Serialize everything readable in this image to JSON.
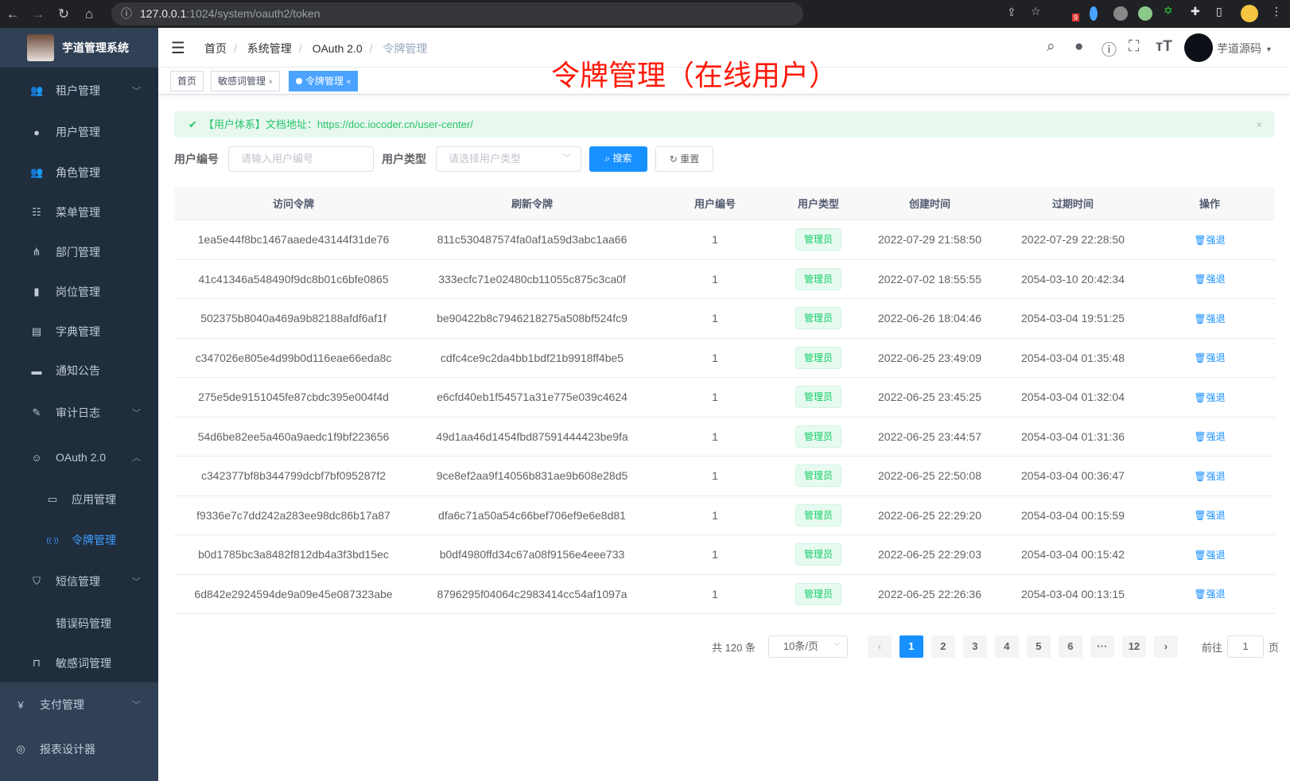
{
  "browser": {
    "url_host": "127.0.0.1",
    "url_path": ":1024/system/oauth2/token",
    "ext_badge": "9"
  },
  "sidebar": {
    "logo_text": "芋道管理系统",
    "items": [
      {
        "label": "租户管理",
        "icon": "tenant-icon",
        "chevron": "﹀"
      },
      {
        "label": "用户管理",
        "icon": "user-icon"
      },
      {
        "label": "角色管理",
        "icon": "role-icon"
      },
      {
        "label": "菜单管理",
        "icon": "menu-tree-icon"
      },
      {
        "label": "部门管理",
        "icon": "org-icon"
      },
      {
        "label": "岗位管理",
        "icon": "post-icon"
      },
      {
        "label": "字典管理",
        "icon": "dict-icon"
      },
      {
        "label": "通知公告",
        "icon": "message-icon"
      },
      {
        "label": "审计日志",
        "icon": "log-icon",
        "chevron": "﹀"
      },
      {
        "label": "OAuth 2.0",
        "icon": "robot-icon",
        "chevron": "︿"
      },
      {
        "label": "应用管理",
        "icon": "briefcase-icon"
      },
      {
        "label": "令牌管理",
        "icon": "token-icon",
        "active": true
      },
      {
        "label": "短信管理",
        "icon": "shield-icon",
        "chevron": "﹀"
      },
      {
        "label": "错误码管理",
        "icon": "code-icon"
      },
      {
        "label": "敏感词管理",
        "icon": "book-icon"
      },
      {
        "label": "支付管理",
        "icon": "yen-icon",
        "chevron": "﹀"
      },
      {
        "label": "报表设计器",
        "icon": "ring-icon"
      }
    ]
  },
  "navbar": {
    "breadcrumb": [
      "首页",
      "系统管理",
      "OAuth 2.0",
      "令牌管理"
    ],
    "username": "芋道源码"
  },
  "tags": [
    {
      "label": "首页"
    },
    {
      "label": "敏感词管理",
      "close": "×"
    },
    {
      "label": "令牌管理",
      "close": "×"
    }
  ],
  "overlay_title": "令牌管理（在线用户）",
  "alert": {
    "text": "【用户体系】文档地址：https://doc.iocoder.cn/user-center/",
    "close": "×"
  },
  "search": {
    "user_id_label": "用户编号",
    "user_id_placeholder": "请输入用户编号",
    "user_type_label": "用户类型",
    "user_type_placeholder": "请选择用户类型",
    "search_btn": "搜索",
    "reset_btn": "重置"
  },
  "table": {
    "headers": [
      "访问令牌",
      "刷新令牌",
      "用户编号",
      "用户类型",
      "创建时间",
      "过期时间",
      "操作"
    ],
    "rows": [
      [
        "1ea5e44f8bc1467aaede43144f31de76",
        "811c530487574fa0af1a59d3abc1aa66",
        "1",
        "管理员",
        "2022-07-29 21:58:50",
        "2022-07-29 22:28:50",
        "强退"
      ],
      [
        "41c41346a548490f9dc8b01c6bfe0865",
        "333ecfc71e02480cb11055c875c3ca0f",
        "1",
        "管理员",
        "2022-07-02 18:55:55",
        "2054-03-10 20:42:34",
        "强退"
      ],
      [
        "502375b8040a469a9b82188afdf6af1f",
        "be90422b8c7946218275a508bf524fc9",
        "1",
        "管理员",
        "2022-06-26 18:04:46",
        "2054-03-04 19:51:25",
        "强退"
      ],
      [
        "c347026e805e4d99b0d116eae66eda8c",
        "cdfc4ce9c2da4bb1bdf21b9918ff4be5",
        "1",
        "管理员",
        "2022-06-25 23:49:09",
        "2054-03-04 01:35:48",
        "强退"
      ],
      [
        "275e5de9151045fe87cbdc395e004f4d",
        "e6cfd40eb1f54571a31e775e039c4624",
        "1",
        "管理员",
        "2022-06-25 23:45:25",
        "2054-03-04 01:32:04",
        "强退"
      ],
      [
        "54d6be82ee5a460a9aedc1f9bf223656",
        "49d1aa46d1454fbd87591444423be9fa",
        "1",
        "管理员",
        "2022-06-25 23:44:57",
        "2054-03-04 01:31:36",
        "强退"
      ],
      [
        "c342377bf8b344799dcbf7bf095287f2",
        "9ce8ef2aa9f14056b831ae9b608e28d5",
        "1",
        "管理员",
        "2022-06-25 22:50:08",
        "2054-03-04 00:36:47",
        "强退"
      ],
      [
        "f9336e7c7dd242a283ee98dc86b17a87",
        "dfa6c71a50a54c66bef706ef9e6e8d81",
        "1",
        "管理员",
        "2022-06-25 22:29:20",
        "2054-03-04 00:15:59",
        "强退"
      ],
      [
        "b0d1785bc3a8482f812db4a3f3bd15ec",
        "b0df4980ffd34c67a08f9156e4eee733",
        "1",
        "管理员",
        "2022-06-25 22:29:03",
        "2054-03-04 00:15:42",
        "强退"
      ],
      [
        "6d842e2924594de9a09e45e087323abe",
        "8796295f04064c2983414cc54af1097a",
        "1",
        "管理员",
        "2022-06-25 22:26:36",
        "2054-03-04 00:13:15",
        "强退"
      ]
    ]
  },
  "pagination": {
    "total": "共 120 条",
    "page_size": "10条/页",
    "pages": [
      "1",
      "2",
      "3",
      "4",
      "5",
      "6",
      "···",
      "12"
    ],
    "current": "1",
    "goto_label": "前往",
    "goto_value": "1",
    "goto_suffix": "页",
    "prev": "‹",
    "next": "›"
  },
  "colors": {
    "primary": "#1890ff",
    "sidebar_bg": "#1f2d3d",
    "success": "#13ce66",
    "title_red": "#ff1a0a"
  }
}
